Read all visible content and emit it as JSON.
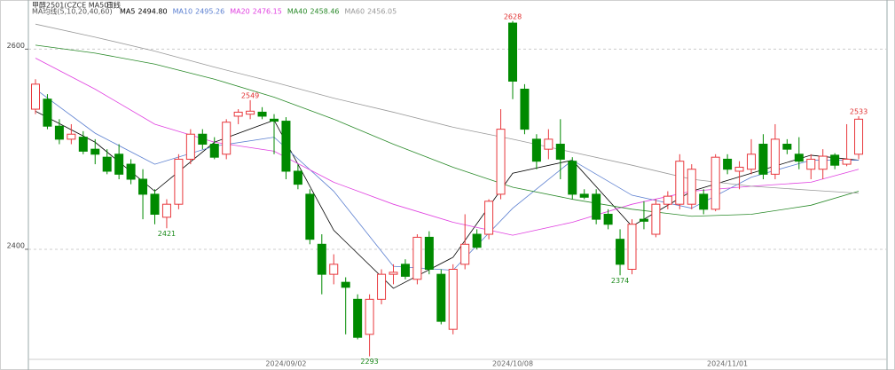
{
  "chart_data": {
    "type": "candlestick",
    "title": "甲醇2501(CZCE MA501)",
    "period": "日线",
    "indicator": "MA均线(5,10,20,40,60)",
    "categories": [
      null,
      null,
      null,
      null,
      null,
      null,
      null,
      null,
      null,
      null,
      null,
      null,
      null,
      null,
      null,
      null,
      null,
      null,
      null,
      null,
      null,
      "2024/09/02",
      null,
      null,
      null,
      null,
      null,
      null,
      null,
      null,
      null,
      null,
      null,
      null,
      null,
      null,
      null,
      null,
      null,
      null,
      "2024/10/08",
      null,
      null,
      null,
      null,
      null,
      null,
      null,
      null,
      null,
      null,
      null,
      null,
      null,
      null,
      null,
      null,
      null,
      "2024/11/01",
      null,
      null,
      null,
      null,
      null,
      null,
      null,
      null,
      null,
      null,
      null
    ],
    "open": [
      2540,
      2550,
      2523,
      2510,
      2512,
      2500,
      2492,
      2495,
      2485,
      2470,
      2455,
      2432,
      2445,
      2490,
      2515,
      2505,
      2495,
      2533,
      2535,
      2537,
      2530,
      2528,
      2478,
      2455,
      2405,
      2375,
      2367,
      2350,
      2315,
      2350,
      2375,
      2385,
      2370,
      2412,
      2375,
      2320,
      2385,
      2415,
      2415,
      2455,
      2626,
      2560,
      2510,
      2500,
      2505,
      2488,
      2455,
      2455,
      2435,
      2410,
      2380,
      2430,
      2415,
      2445,
      2445,
      2445,
      2455,
      2440,
      2490,
      2478,
      2480,
      2505,
      2475,
      2505,
      2495,
      2480,
      2480,
      2494,
      2485,
      2495
    ],
    "high": [
      2570,
      2555,
      2530,
      2525,
      2518,
      2510,
      2500,
      2505,
      2490,
      2480,
      2460,
      2450,
      2495,
      2520,
      2520,
      2512,
      2530,
      2540,
      2549,
      2542,
      2535,
      2532,
      2485,
      2460,
      2415,
      2395,
      2372,
      2355,
      2355,
      2380,
      2385,
      2390,
      2415,
      2418,
      2380,
      2385,
      2435,
      2420,
      2450,
      2540,
      2628,
      2565,
      2515,
      2520,
      2530,
      2492,
      2460,
      2460,
      2440,
      2420,
      2430,
      2448,
      2450,
      2458,
      2495,
      2485,
      2460,
      2495,
      2495,
      2488,
      2510,
      2515,
      2525,
      2510,
      2512,
      2495,
      2500,
      2496,
      2525,
      2533
    ],
    "low": [
      2535,
      2520,
      2505,
      2505,
      2495,
      2485,
      2475,
      2470,
      2465,
      2430,
      2425,
      2421,
      2440,
      2485,
      2500,
      2490,
      2490,
      2525,
      2530,
      2530,
      2495,
      2470,
      2460,
      2405,
      2355,
      2365,
      2315,
      2310,
      2293,
      2345,
      2365,
      2370,
      2365,
      2375,
      2325,
      2315,
      2380,
      2400,
      2410,
      2450,
      2550,
      2515,
      2480,
      2490,
      2470,
      2450,
      2450,
      2425,
      2420,
      2374,
      2375,
      2420,
      2412,
      2440,
      2440,
      2440,
      2435,
      2438,
      2475,
      2460,
      2475,
      2470,
      2470,
      2495,
      2480,
      2470,
      2470,
      2480,
      2483,
      2490
    ],
    "close": [
      2565,
      2523,
      2510,
      2515,
      2498,
      2495,
      2478,
      2475,
      2470,
      2455,
      2435,
      2445,
      2490,
      2515,
      2505,
      2492,
      2527,
      2537,
      2538,
      2533,
      2528,
      2478,
      2465,
      2410,
      2375,
      2385,
      2362,
      2312,
      2350,
      2375,
      2377,
      2373,
      2412,
      2380,
      2328,
      2380,
      2405,
      2402,
      2448,
      2520,
      2568,
      2520,
      2488,
      2510,
      2490,
      2455,
      2452,
      2430,
      2425,
      2385,
      2425,
      2428,
      2445,
      2453,
      2488,
      2480,
      2440,
      2492,
      2480,
      2482,
      2495,
      2475,
      2510,
      2500,
      2488,
      2490,
      2493,
      2484,
      2490,
      2530
    ],
    "up_color": "#e8383d",
    "down_color": "#008a00",
    "series": [
      {
        "name": "MA5",
        "legend_value": "2494.80",
        "color": "#000000",
        "x": [
          0,
          5,
          10,
          15,
          20,
          25,
          30,
          35,
          40,
          45,
          50,
          55,
          60,
          65,
          69
        ],
        "values": [
          2538,
          2507,
          2458,
          2507,
          2529,
          2419,
          2361,
          2392,
          2476,
          2489,
          2423,
          2458,
          2476,
          2494,
          2489
        ]
      },
      {
        "name": "MA10",
        "legend_value": "2495.26",
        "color": "#5b7fd0",
        "x": [
          0,
          5,
          10,
          15,
          20,
          25,
          30,
          35,
          40,
          45,
          50,
          55,
          60,
          65,
          69
        ],
        "values": [
          2560,
          2516,
          2485,
          2503,
          2512,
          2458,
          2383,
          2379,
          2441,
          2489,
          2454,
          2441,
          2472,
          2489,
          2489
        ]
      },
      {
        "name": "MA20",
        "legend_value": "2476.15",
        "color": "#e040e0",
        "x": [
          0,
          5,
          10,
          15,
          20,
          25,
          30,
          35,
          40,
          45,
          50,
          55,
          60,
          65,
          69
        ],
        "values": [
          2591,
          2560,
          2525,
          2507,
          2498,
          2467,
          2445,
          2427,
          2414,
          2427,
          2445,
          2458,
          2463,
          2467,
          2480
        ]
      },
      {
        "name": "MA40",
        "legend_value": "2458.46",
        "color": "#2a8a2a",
        "x": [
          0,
          5,
          10,
          15,
          20,
          25,
          30,
          35,
          40,
          45,
          50,
          55,
          60,
          65,
          69
        ],
        "values": [
          2604,
          2596,
          2585,
          2570,
          2552,
          2530,
          2505,
          2482,
          2462,
          2450,
          2440,
          2433,
          2435,
          2444,
          2458
        ]
      },
      {
        "name": "MA60",
        "legend_value": "2456.05",
        "color": "#999999",
        "x": [
          0,
          5,
          10,
          15,
          20,
          25,
          30,
          35,
          40,
          45,
          50,
          55,
          60,
          65,
          69
        ],
        "values": [
          2625,
          2612,
          2598,
          2582,
          2567,
          2551,
          2537,
          2522,
          2510,
          2497,
          2484,
          2470,
          2463,
          2459,
          2456
        ]
      }
    ],
    "annotations": [
      {
        "label": "2628",
        "value": 2628,
        "color": "#e03030"
      },
      {
        "label": "2549",
        "value": 2549,
        "color": "#e03030"
      },
      {
        "label": "2421",
        "value": 2421,
        "color": "#1a8a1a"
      },
      {
        "label": "2293",
        "value": 2293,
        "color": "#1a8a1a"
      },
      {
        "label": "2374",
        "value": 2374,
        "color": "#1a8a1a"
      },
      {
        "label": "2533",
        "value": 2533,
        "color": "#e03030"
      }
    ],
    "ylim": [
      2290,
      2642
    ],
    "yticks": [
      2400,
      2600
    ],
    "grid": true
  }
}
